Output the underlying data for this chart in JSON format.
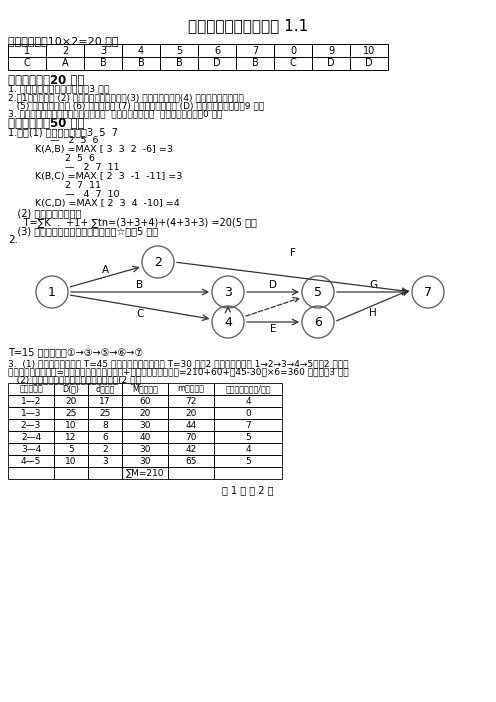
{
  "title": "建筑施工组织参考答案 1.1",
  "section1": "一、选择题（10×2=20 分）",
  "table1_header": [
    "1",
    "2",
    "3",
    "4",
    "5",
    "6",
    "7",
    "0",
    "9",
    "10"
  ],
  "table1_row": [
    "C",
    "A",
    "B",
    "B",
    "B",
    "D",
    "B",
    "C",
    "D",
    "D"
  ],
  "section2": "二、简答题（20 分）",
  "s2_line1": "1. 安全帽，安全带，安全网（3 分）",
  "s2_line2": "2.（1）工组概况 (2) 施工方案和施工方法；(3) 施工进度计划；(4) 施工准备工作计划，",
  "s2_line3": "   (5) 质量安全量计划 (6) 施工平面图 (7) 主要技术组织措施 (D) 技术经济指标分析（9 分）",
  "s2_line4": "3. 先地下，后地上；先主建，后设备；  先主体，后围护；  先结构，后装饰（0 分）",
  "section3": "三、计算题（50 分）",
  "s3_line1": "1.解：(1) 计算流水步距：3  5  7",
  "calc_line1": "              —   2  5  6",
  "calc_line2": "         K(A,B) =MAX [ 3  3  2  -6] =3",
  "calc_line3": "                   2  5  6",
  "calc_line4": "                   —   2  7  11",
  "calc_line5": "         K(B,C) =MAX [ 2  3  -1  -11] =3",
  "calc_line6": "                   2  7  11",
  "calc_line7": "                   —   4  7  10",
  "calc_line8": "         K(C,D) =MAX [ 2  3  4  -10] =4",
  "s3_line2": "   (2) 计算流水施工工期",
  "s3_line3": "     T=∑K  .  +1+ ∑tn=(3+3+4)+(4+3+3) =20(5 分）",
  "s3_line4": "   (3) 绘制流水施工进度计划，如图（☆）（5 分）",
  "s3_2": "2.",
  "network_note": "T=15 关键路线是①→③→⑤→⑥→⑦",
  "s3_3_line1": "3.  (1) 正常持续时间时的 T=45 天；最短持续时间时的 T=30 天（2 分）关键路线是 1→2→3→4→5；（2 分）正",
  "s3_3_line2": "常持续时间的总费用=工资持间里的总直接费用+正常持间的间接费用=210+60+（45-30）×6=360 万元。（3 分）",
  "s3_3_line3": "   (2) 计算各项工作的直接费率参考下表：(2 分）",
  "table2_headers": [
    "工作（一）",
    "D(天)",
    "d（天）",
    "M（万元）",
    "m（万元）",
    "直接费率（万元/天）"
  ],
  "table2_rows": [
    [
      "1—2",
      "20",
      "17",
      "60",
      "72",
      "4"
    ],
    [
      "1—3",
      "25",
      "25",
      "20",
      "20",
      "0"
    ],
    [
      "2—3",
      "10",
      "8",
      "30",
      "44",
      "7"
    ],
    [
      "2—4",
      "12",
      "6",
      "40",
      "70",
      "5"
    ],
    [
      "3—4",
      "5",
      "2",
      "30",
      "42",
      "4"
    ],
    [
      "4—5",
      "10",
      "3",
      "30",
      "65",
      "5"
    ]
  ],
  "table2_sum": "∑M=210",
  "footer": "第 1 页 共 2 页"
}
